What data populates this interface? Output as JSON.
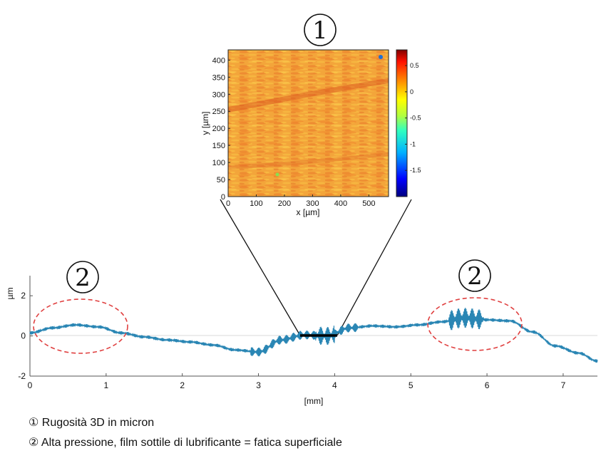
{
  "chart_data": [
    {
      "type": "heatmap",
      "title": "",
      "xlabel": "x [µm]",
      "ylabel": "y [µm]",
      "xlim": [
        0,
        570
      ],
      "ylim": [
        0,
        430
      ],
      "x_ticks": [
        "0",
        "100",
        "200",
        "300",
        "400",
        "500"
      ],
      "y_ticks": [
        "0",
        "50",
        "100",
        "150",
        "200",
        "250",
        "300",
        "350",
        "400"
      ],
      "colorbar": {
        "range": [
          -2.0,
          0.8
        ],
        "ticks": [
          "0.5",
          "0",
          "-0.5",
          "-1",
          "-1.5"
        ],
        "colormap": "jet"
      },
      "dominant_color": "#f0a33a",
      "description_marker": "①"
    },
    {
      "type": "line",
      "title": "",
      "xlabel": "[mm]",
      "ylabel": "µm",
      "xlim": [
        0,
        7.45
      ],
      "ylim": [
        -2,
        3
      ],
      "x_ticks": [
        "0",
        "1",
        "2",
        "3",
        "4",
        "5",
        "6",
        "7"
      ],
      "y_ticks": [
        "2",
        "0",
        "-2"
      ],
      "series": [
        {
          "color": "#2a86b4",
          "x": [
            0,
            0.3,
            0.6,
            0.9,
            1.2,
            1.5,
            1.8,
            2.1,
            2.4,
            2.7,
            3.0,
            3.3,
            3.6,
            3.9,
            4.2,
            4.5,
            4.8,
            5.1,
            5.4,
            5.7,
            6.0,
            6.3,
            6.6,
            6.9,
            7.2,
            7.45
          ],
          "y": [
            0.15,
            0.4,
            0.55,
            0.45,
            0.15,
            -0.05,
            -0.2,
            -0.3,
            -0.45,
            -0.7,
            -0.8,
            -0.2,
            0.05,
            0.0,
            0.4,
            0.5,
            0.45,
            0.55,
            0.7,
            0.9,
            0.8,
            0.75,
            0.2,
            -0.5,
            -0.85,
            -1.25
          ]
        }
      ],
      "zoom_region_mm": [
        3.55,
        3.95
      ],
      "highlight_regions": [
        {
          "x_center": 0.7,
          "y_center": 0.3,
          "x_halfwidth": 1.3,
          "y_halfwidth": 0.8,
          "marker": "②"
        },
        {
          "x_center": 5.8,
          "y_center": 0.6,
          "x_halfwidth": 1.2,
          "y_halfwidth": 0.9,
          "marker": "②"
        }
      ]
    }
  ],
  "caption": {
    "line1": "① Rugosità 3D in micron",
    "line2": "② Alta pressione, film sottile di lubrificante = fatica superficiale"
  }
}
